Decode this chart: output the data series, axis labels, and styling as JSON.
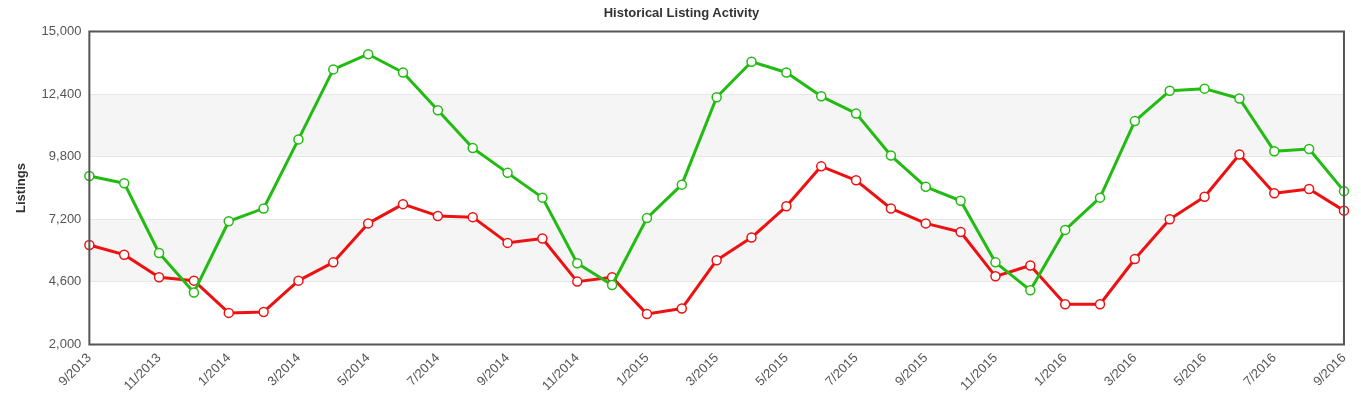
{
  "chart_data": {
    "type": "line",
    "title": "Historical Listing Activity",
    "ylabel": "Listings",
    "categories": [
      "9/2013",
      null,
      "11/2013",
      null,
      "1/2014",
      null,
      "3/2014",
      null,
      "5/2014",
      null,
      "7/2014",
      null,
      "9/2014",
      null,
      "11/2014",
      null,
      "1/2015",
      null,
      "3/2015",
      null,
      "5/2015",
      null,
      "7/2015",
      null,
      "9/2015",
      null,
      "11/2015",
      null,
      "1/2016",
      null,
      "3/2016",
      null,
      "5/2016",
      null,
      "7/2016",
      null,
      "9/2016"
    ],
    "series": [
      {
        "color": "#22bb11",
        "values": [
          9000,
          8700,
          5800,
          4160,
          7120,
          7650,
          10520,
          13430,
          14060,
          13300,
          11730,
          10160,
          9130,
          8100,
          5370,
          4470,
          7250,
          8640,
          12270,
          13750,
          13300,
          12310,
          11600,
          9850,
          8550,
          7970,
          5410,
          4250,
          6760,
          8100,
          11280,
          12540,
          12630,
          12220,
          10030,
          10120,
          8370
        ]
      },
      {
        "color": "#ee1111",
        "values": [
          6130,
          5730,
          4790,
          4650,
          3310,
          3350,
          4650,
          5410,
          7030,
          7830,
          7340,
          7290,
          6220,
          6400,
          4610,
          4790,
          3260,
          3490,
          5500,
          6440,
          7740,
          9400,
          8820,
          7650,
          7030,
          6670,
          4830,
          5280,
          3670,
          3670,
          5550,
          7200,
          8140,
          9890,
          8280,
          8460,
          7560
        ]
      }
    ],
    "ylim": [
      2000,
      15000
    ],
    "yticks": [
      {
        "value": 2000,
        "label": "2,000"
      },
      {
        "value": 4600,
        "label": "4,600"
      },
      {
        "value": 7200,
        "label": "7,200"
      },
      {
        "value": 9800,
        "label": "9,800"
      },
      {
        "value": 12400,
        "label": "12,400"
      },
      {
        "value": 15000,
        "label": "15,000"
      }
    ],
    "grid": "y",
    "legend": false,
    "marker": "circle",
    "line_style": "solid"
  }
}
